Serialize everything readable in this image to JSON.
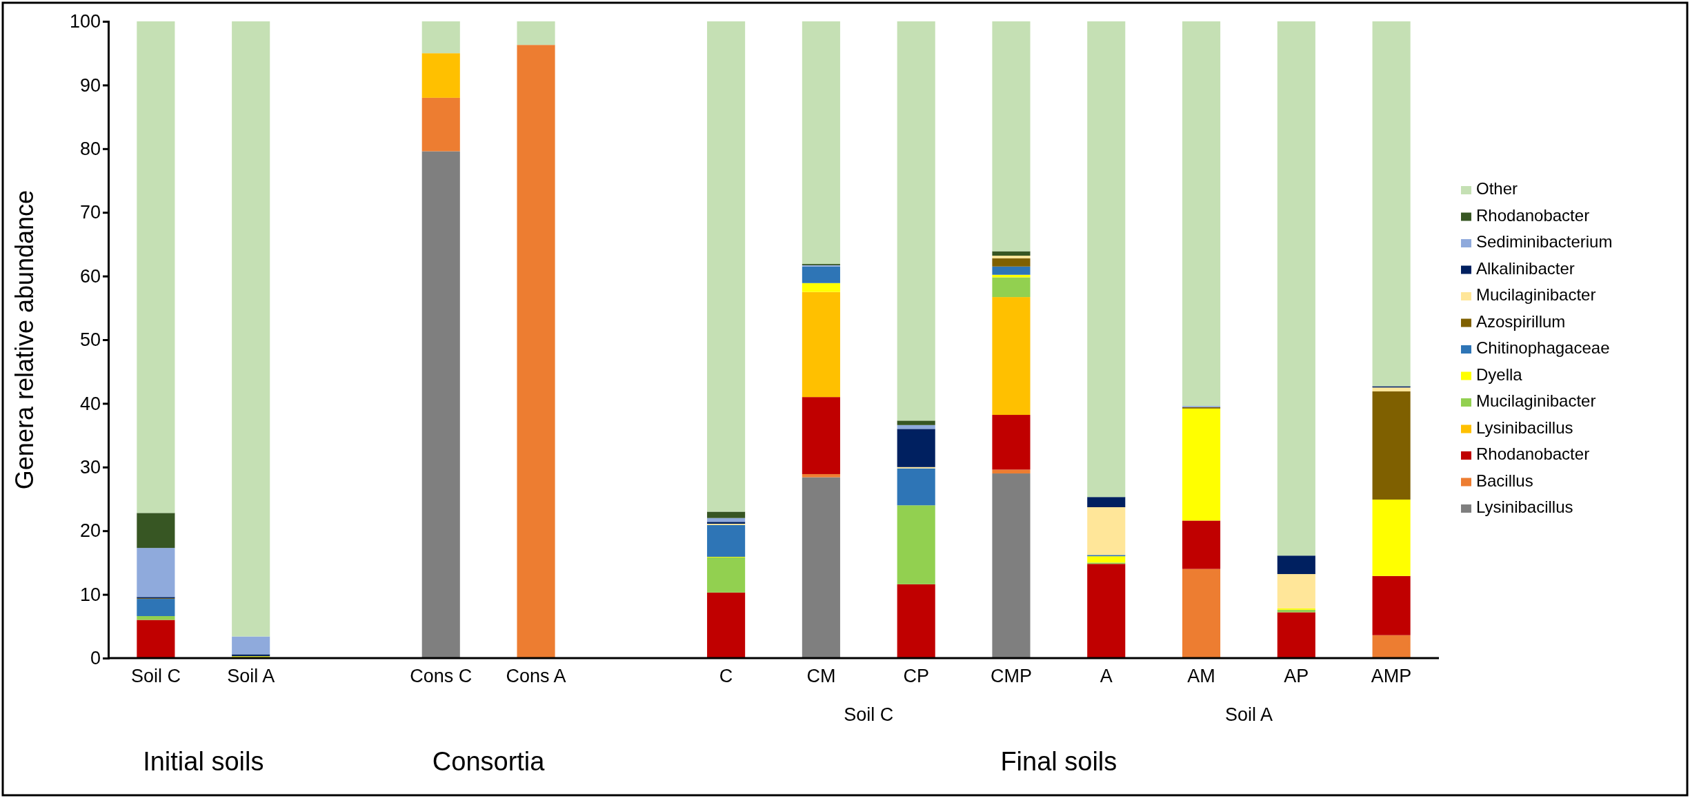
{
  "chart_data": {
    "type": "bar",
    "stacked": true,
    "ylabel": "Genera relative abundance",
    "categories": [
      "Soil C",
      "Soil A",
      null,
      "Cons C",
      "Cons A",
      null,
      "C",
      "CM",
      "CP",
      "CMP",
      "A",
      "AM",
      "AP",
      "AMP"
    ],
    "ylim": [
      0,
      100
    ],
    "yticks": [
      0,
      10,
      20,
      30,
      40,
      50,
      60,
      70,
      80,
      90,
      100
    ],
    "grid": false,
    "legend": "right",
    "series": [
      {
        "name": "Lysinibacillus",
        "color": "#7f7f7f",
        "values": [
          0,
          0,
          null,
          79.6,
          0,
          null,
          0,
          28.4,
          0,
          29.0,
          0,
          0,
          0,
          0
        ]
      },
      {
        "name": "Bacillus",
        "color": "#ed7d31",
        "values": [
          0,
          0,
          null,
          8.4,
          96.3,
          null,
          0,
          0.5,
          0,
          0.6,
          0,
          14.0,
          0,
          3.6
        ]
      },
      {
        "name": "Rhodanobacter",
        "color": "#c00000",
        "values": [
          6.0,
          0,
          null,
          0,
          0,
          null,
          10.3,
          12.1,
          11.6,
          8.6,
          14.8,
          7.6,
          7.2,
          9.3
        ]
      },
      {
        "name": "Lysinibacillus",
        "color": "#ffc000",
        "values": [
          0,
          0,
          null,
          7.0,
          0,
          null,
          0,
          16.5,
          0,
          18.5,
          0,
          0,
          0,
          0
        ]
      },
      {
        "name": "Mucilaginibacter",
        "color": "#92d050",
        "values": [
          0.6,
          0,
          null,
          0,
          0,
          null,
          5.5,
          0,
          12.4,
          3.1,
          0.2,
          0,
          0.4,
          0
        ]
      },
      {
        "name": "Dyella",
        "color": "#ffff00",
        "values": [
          0,
          0.3,
          null,
          0,
          0,
          null,
          0.1,
          1.4,
          0,
          0.4,
          1.0,
          17.6,
          0.2,
          12.0
        ]
      },
      {
        "name": "Chitinophagaceae",
        "color": "#2e75b6",
        "values": [
          2.7,
          0,
          null,
          0,
          0,
          null,
          5.0,
          2.6,
          5.8,
          1.3,
          0.2,
          0,
          0,
          0
        ]
      },
      {
        "name": "Azospirillum",
        "color": "#7f6000",
        "values": [
          0.1,
          0,
          null,
          0,
          0,
          null,
          0,
          0,
          0,
          1.3,
          0,
          0.2,
          0,
          17.0
        ]
      },
      {
        "name": "Mucilaginibacter",
        "color": "#ffe699",
        "values": [
          0,
          0,
          null,
          0,
          0,
          null,
          0.2,
          0,
          0.2,
          0.4,
          7.5,
          0,
          5.4,
          0.6
        ]
      },
      {
        "name": "Alkalinibacter",
        "color": "#002060",
        "values": [
          0.2,
          0.3,
          null,
          0,
          0,
          null,
          0.3,
          0,
          6.0,
          0,
          1.6,
          0,
          2.9,
          0.2
        ]
      },
      {
        "name": "Sediminibacterium",
        "color": "#8faadc",
        "values": [
          7.7,
          2.8,
          null,
          0,
          0,
          null,
          0.6,
          0.2,
          0.6,
          0,
          0,
          0.2,
          0,
          0
        ]
      },
      {
        "name": "Rhodanobacter",
        "color": "#375623",
        "values": [
          5.5,
          0,
          null,
          0,
          0,
          null,
          1.0,
          0.2,
          0.7,
          0.7,
          0,
          0,
          0,
          0
        ]
      },
      {
        "name": "Other",
        "color": "#c5e0b4",
        "values": [
          77.2,
          96.6,
          null,
          5.0,
          3.7,
          null,
          77.0,
          38.1,
          62.7,
          36.1,
          74.7,
          60.4,
          83.9,
          57.3
        ]
      }
    ],
    "annotations": [
      "Soil C",
      "Soil A",
      "Initial soils",
      "Consortia",
      "Final soils"
    ]
  }
}
